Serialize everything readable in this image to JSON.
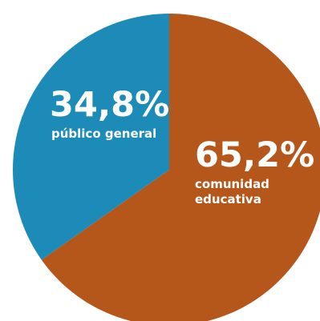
{
  "chart_data": {
    "type": "pie",
    "slices": [
      {
        "name": "comunidad educativa",
        "label_lines": [
          "comunidad",
          "educativa"
        ],
        "percent_label": "65,2%",
        "value": 65.2,
        "color": "#b5561b"
      },
      {
        "name": "público general",
        "label_lines": [
          "público general"
        ],
        "percent_label": "34,8%",
        "value": 34.8,
        "color": "#1d8bb8"
      }
    ],
    "start_angle_deg": 0,
    "direction": "clockwise",
    "legend": "none"
  }
}
